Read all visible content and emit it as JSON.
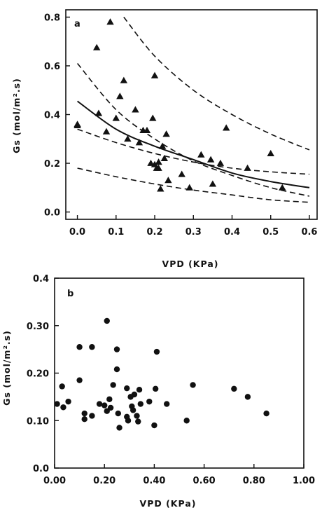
{
  "chart_data": [
    {
      "type": "scatter",
      "panel_label": "a",
      "xlabel": "VPD (KPa)",
      "ylabel": "Gs (mol/m².s)",
      "xlim": [
        -0.03,
        0.62
      ],
      "ylim": [
        -0.03,
        0.83
      ],
      "x_ticks": [
        0.0,
        0.1,
        0.2,
        0.3,
        0.4,
        0.5,
        0.6
      ],
      "x_tick_labels": [
        "0.0",
        "0.1",
        "0.2",
        "0.3",
        "0.4",
        "0.5",
        "0.6"
      ],
      "y_ticks": [
        0.0,
        0.2,
        0.4,
        0.6,
        0.8
      ],
      "y_tick_labels": [
        "0.0",
        "0.2",
        "0.4",
        "0.6",
        "0.8"
      ],
      "grid": false,
      "marker": "triangle",
      "points": [
        {
          "x": 0.0,
          "y": 0.36
        },
        {
          "x": 0.0,
          "y": 0.355
        },
        {
          "x": 0.05,
          "y": 0.675
        },
        {
          "x": 0.055,
          "y": 0.405
        },
        {
          "x": 0.075,
          "y": 0.33
        },
        {
          "x": 0.085,
          "y": 0.78
        },
        {
          "x": 0.1,
          "y": 0.385
        },
        {
          "x": 0.11,
          "y": 0.475
        },
        {
          "x": 0.12,
          "y": 0.54
        },
        {
          "x": 0.13,
          "y": 0.3
        },
        {
          "x": 0.15,
          "y": 0.42
        },
        {
          "x": 0.16,
          "y": 0.285
        },
        {
          "x": 0.17,
          "y": 0.335
        },
        {
          "x": 0.18,
          "y": 0.335
        },
        {
          "x": 0.19,
          "y": 0.2
        },
        {
          "x": 0.195,
          "y": 0.385
        },
        {
          "x": 0.2,
          "y": 0.56
        },
        {
          "x": 0.2,
          "y": 0.195
        },
        {
          "x": 0.205,
          "y": 0.18
        },
        {
          "x": 0.21,
          "y": 0.205
        },
        {
          "x": 0.21,
          "y": 0.18
        },
        {
          "x": 0.215,
          "y": 0.095
        },
        {
          "x": 0.22,
          "y": 0.27
        },
        {
          "x": 0.225,
          "y": 0.22
        },
        {
          "x": 0.23,
          "y": 0.32
        },
        {
          "x": 0.235,
          "y": 0.13
        },
        {
          "x": 0.27,
          "y": 0.155
        },
        {
          "x": 0.29,
          "y": 0.1
        },
        {
          "x": 0.32,
          "y": 0.235
        },
        {
          "x": 0.345,
          "y": 0.215
        },
        {
          "x": 0.35,
          "y": 0.115
        },
        {
          "x": 0.37,
          "y": 0.2
        },
        {
          "x": 0.385,
          "y": 0.345
        },
        {
          "x": 0.44,
          "y": 0.18
        },
        {
          "x": 0.5,
          "y": 0.24
        },
        {
          "x": 0.53,
          "y": 0.1
        }
      ],
      "curves": [
        {
          "style": "solid",
          "x": [
            0.0,
            0.1,
            0.2,
            0.3,
            0.4,
            0.5,
            0.6
          ],
          "y": [
            0.455,
            0.34,
            0.27,
            0.215,
            0.16,
            0.125,
            0.1
          ]
        },
        {
          "style": "dashed",
          "x": [
            0.0,
            0.1,
            0.2,
            0.3,
            0.4,
            0.5,
            0.6
          ],
          "y": [
            0.34,
            0.285,
            0.24,
            0.205,
            0.18,
            0.165,
            0.155
          ]
        },
        {
          "style": "dashed",
          "x": [
            0.0,
            0.1,
            0.2,
            0.3,
            0.4,
            0.5,
            0.6
          ],
          "y": [
            0.61,
            0.42,
            0.3,
            0.21,
            0.15,
            0.1,
            0.065
          ]
        },
        {
          "style": "dashed",
          "x": [
            0.0,
            0.1,
            0.2,
            0.3,
            0.4,
            0.5,
            0.6
          ],
          "y": [
            0.18,
            0.145,
            0.115,
            0.09,
            0.07,
            0.05,
            0.04
          ]
        },
        {
          "style": "dashed",
          "x": [
            0.12,
            0.2,
            0.3,
            0.4,
            0.5,
            0.6
          ],
          "y": [
            0.8,
            0.64,
            0.5,
            0.4,
            0.32,
            0.255
          ]
        }
      ]
    },
    {
      "type": "scatter",
      "panel_label": "b",
      "xlabel": "VPD (KPa)",
      "ylabel": "Gs (mol/m².s)",
      "xlim": [
        0.0,
        1.0
      ],
      "ylim": [
        0.0,
        0.4
      ],
      "x_ticks": [
        0.0,
        0.2,
        0.4,
        0.6,
        0.8,
        1.0
      ],
      "x_tick_labels": [
        "0.00",
        "0.20",
        "0.40",
        "0.60",
        "0.80",
        "1.00"
      ],
      "y_ticks": [
        0.0,
        0.1,
        0.2,
        0.3,
        0.4
      ],
      "y_tick_labels": [
        "0.0",
        "0.10",
        "0.20",
        "0.30",
        "0.4"
      ],
      "grid": false,
      "marker": "circle",
      "points": [
        {
          "x": 0.01,
          "y": 0.135
        },
        {
          "x": 0.03,
          "y": 0.172
        },
        {
          "x": 0.035,
          "y": 0.128
        },
        {
          "x": 0.055,
          "y": 0.14
        },
        {
          "x": 0.1,
          "y": 0.255
        },
        {
          "x": 0.1,
          "y": 0.185
        },
        {
          "x": 0.12,
          "y": 0.115
        },
        {
          "x": 0.12,
          "y": 0.103
        },
        {
          "x": 0.15,
          "y": 0.255
        },
        {
          "x": 0.15,
          "y": 0.11
        },
        {
          "x": 0.18,
          "y": 0.135
        },
        {
          "x": 0.2,
          "y": 0.132
        },
        {
          "x": 0.21,
          "y": 0.31
        },
        {
          "x": 0.21,
          "y": 0.12
        },
        {
          "x": 0.22,
          "y": 0.145
        },
        {
          "x": 0.225,
          "y": 0.127
        },
        {
          "x": 0.235,
          "y": 0.175
        },
        {
          "x": 0.25,
          "y": 0.25
        },
        {
          "x": 0.25,
          "y": 0.208
        },
        {
          "x": 0.255,
          "y": 0.115
        },
        {
          "x": 0.26,
          "y": 0.085
        },
        {
          "x": 0.29,
          "y": 0.168
        },
        {
          "x": 0.29,
          "y": 0.108
        },
        {
          "x": 0.295,
          "y": 0.1
        },
        {
          "x": 0.305,
          "y": 0.15
        },
        {
          "x": 0.31,
          "y": 0.13
        },
        {
          "x": 0.315,
          "y": 0.122
        },
        {
          "x": 0.32,
          "y": 0.155
        },
        {
          "x": 0.33,
          "y": 0.11
        },
        {
          "x": 0.335,
          "y": 0.098
        },
        {
          "x": 0.34,
          "y": 0.165
        },
        {
          "x": 0.345,
          "y": 0.135
        },
        {
          "x": 0.38,
          "y": 0.14
        },
        {
          "x": 0.4,
          "y": 0.09
        },
        {
          "x": 0.405,
          "y": 0.167
        },
        {
          "x": 0.41,
          "y": 0.245
        },
        {
          "x": 0.45,
          "y": 0.135
        },
        {
          "x": 0.53,
          "y": 0.1
        },
        {
          "x": 0.555,
          "y": 0.175
        },
        {
          "x": 0.72,
          "y": 0.167
        },
        {
          "x": 0.775,
          "y": 0.15
        },
        {
          "x": 0.85,
          "y": 0.115
        }
      ]
    }
  ]
}
